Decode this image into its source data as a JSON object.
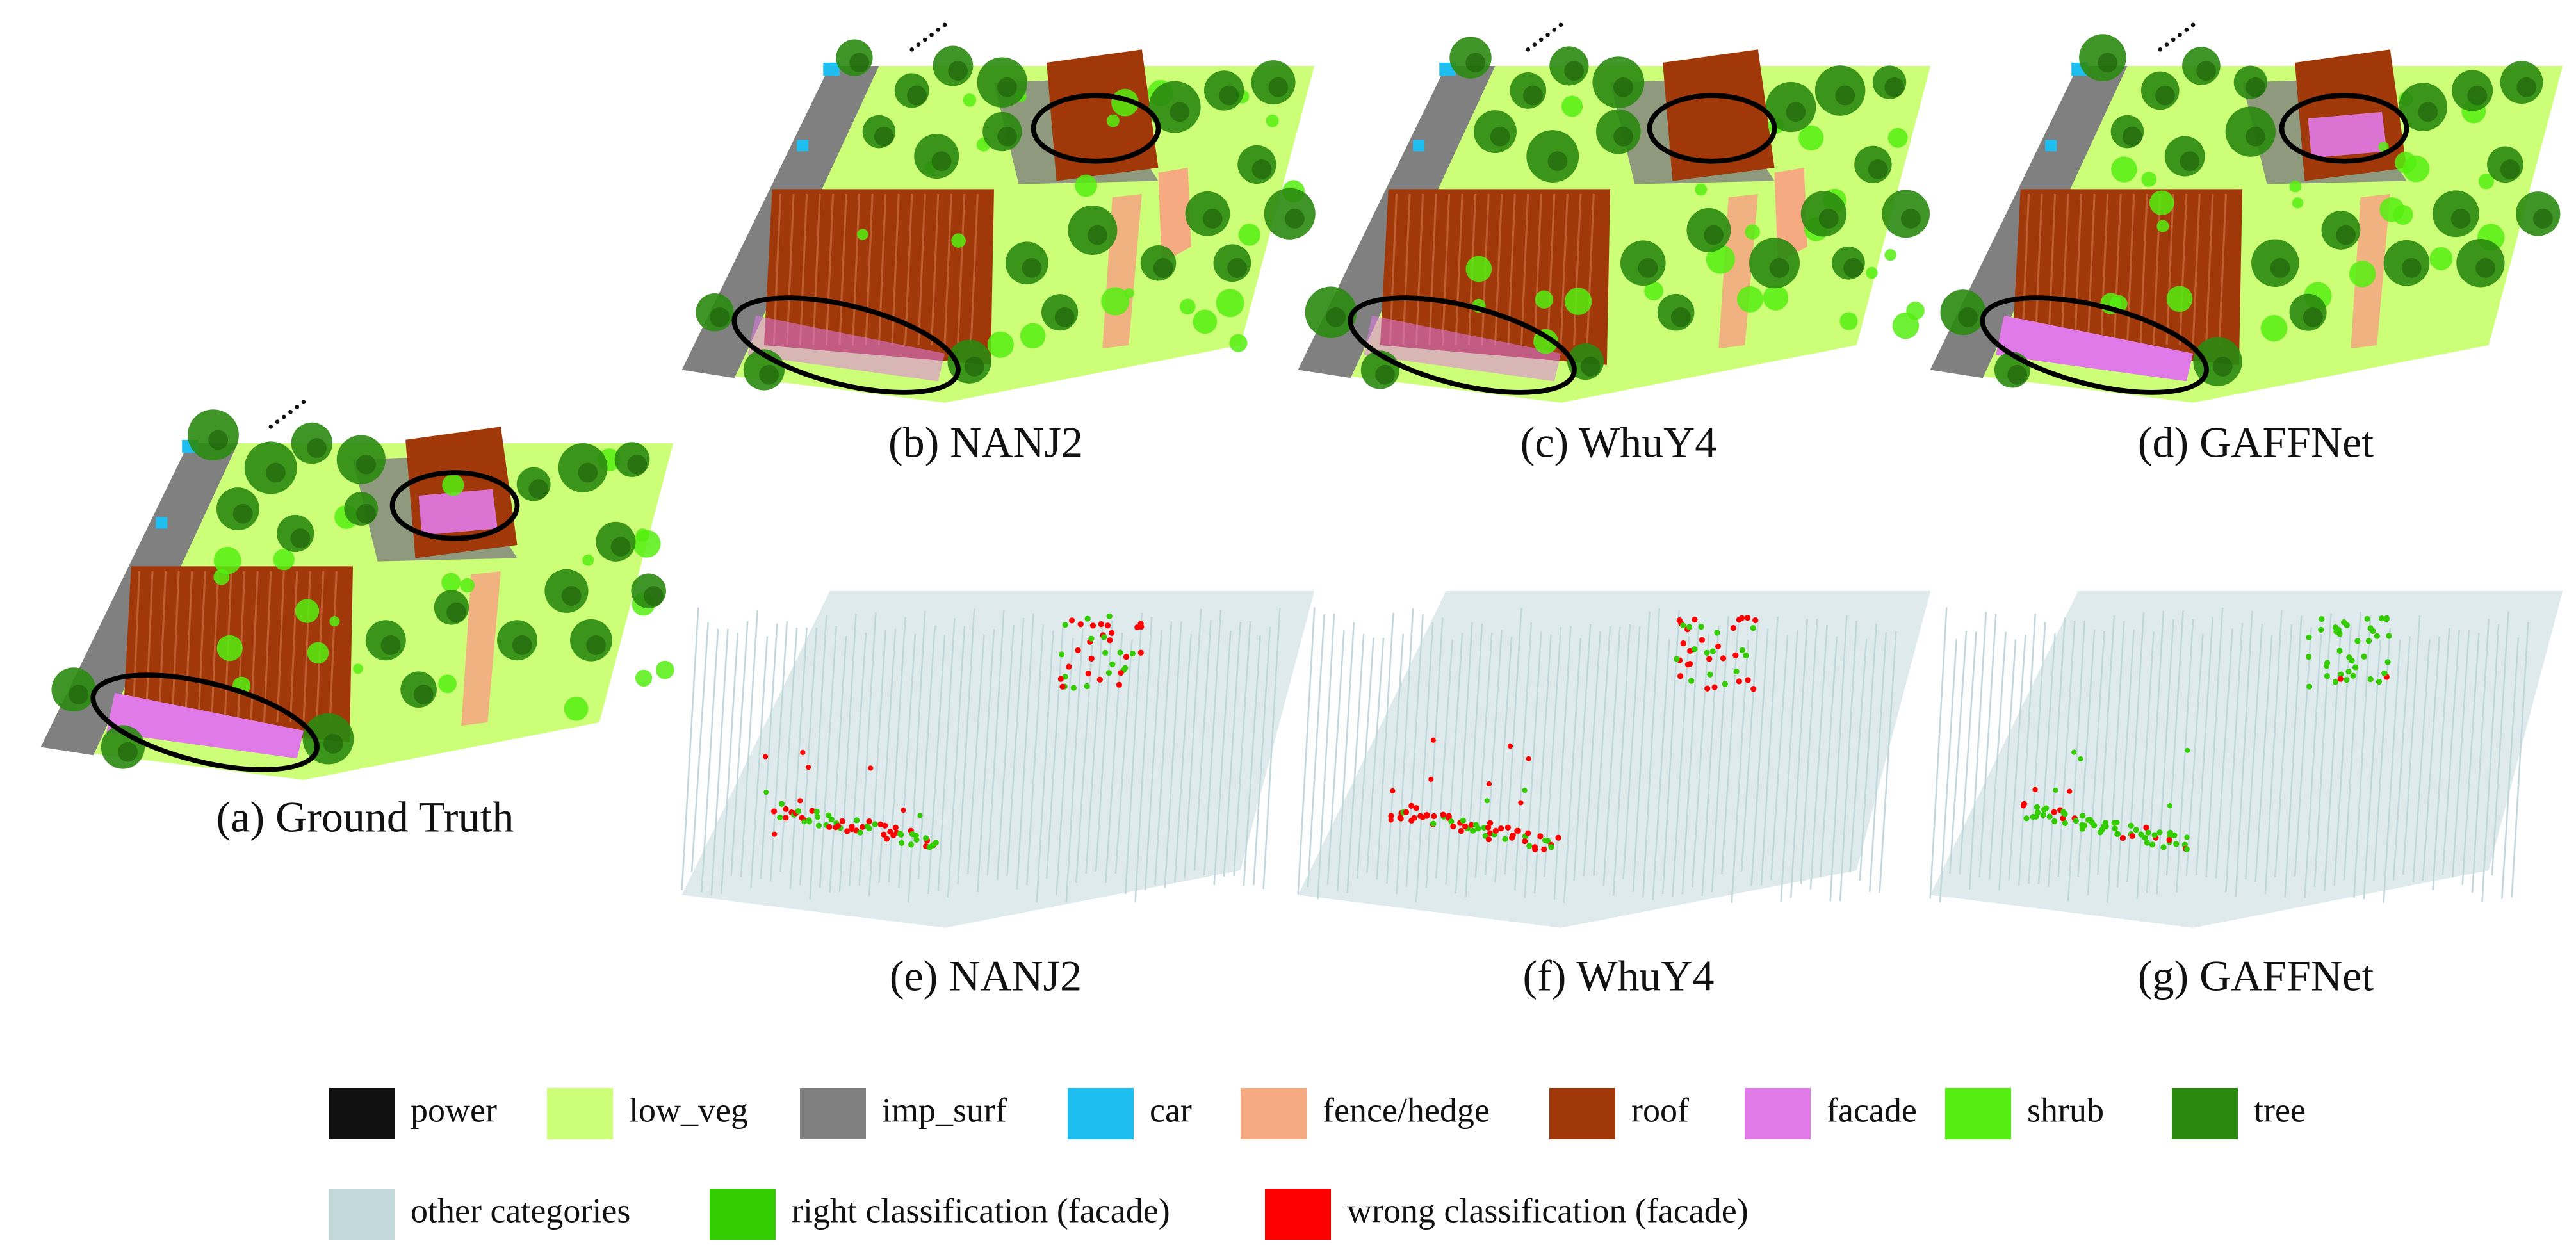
{
  "panels": [
    {
      "caption": "(a) Ground Truth"
    },
    {
      "caption": "(b) NANJ2"
    },
    {
      "caption": "(c) WhuY4"
    },
    {
      "caption": "(d) GAFFNet"
    },
    {
      "caption": "(e) NANJ2"
    },
    {
      "caption": "(f) WhuY4"
    },
    {
      "caption": "(g) GAFFNet"
    }
  ],
  "legend": {
    "rows": [
      [
        {
          "label": "power",
          "color": "#111111"
        },
        {
          "label": "low_veg",
          "color": "#ccff77"
        },
        {
          "label": "imp_surf",
          "color": "#808080"
        },
        {
          "label": "car",
          "color": "#1ebef0"
        },
        {
          "label": "fence/hedge",
          "color": "#f5aa82"
        },
        {
          "label": "roof",
          "color": "#a0380a"
        },
        {
          "label": "facade",
          "color": "#e07ae8"
        },
        {
          "label": "shrub",
          "color": "#55ee11"
        },
        {
          "label": "tree",
          "color": "#2a8a0f"
        }
      ],
      [
        {
          "label": "other categories",
          "color": "#c2d8da"
        },
        {
          "label": "right classification (facade)",
          "color": "#33cc00"
        },
        {
          "label": "wrong classification (facade)",
          "color": "#ff0000"
        }
      ]
    ]
  }
}
